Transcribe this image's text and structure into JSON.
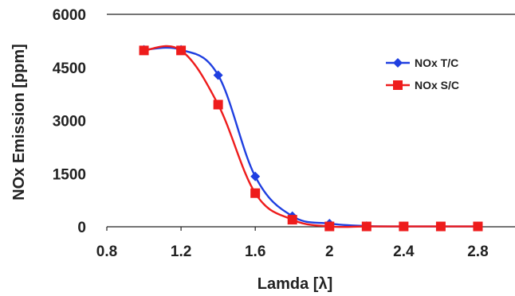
{
  "chart_data": {
    "type": "line",
    "xlabel": "Lamda [λ]",
    "ylabel": "NOx Emission [ppm]",
    "xlim": [
      0.8,
      3.0
    ],
    "ylim": [
      0,
      6000
    ],
    "x_ticks": [
      "0.8",
      "1.2",
      "1.6",
      "2",
      "2.4",
      "2.8"
    ],
    "y_ticks": [
      "0",
      "1500",
      "3000",
      "4500",
      "6000"
    ],
    "grid": "top border line only",
    "legend_position": "right",
    "series": [
      {
        "name": "NOx T/C",
        "color": "#1f3fe0",
        "marker": "diamond",
        "x": [
          1.0,
          1.2,
          1.4,
          1.6,
          1.8,
          2.0,
          2.2,
          2.4,
          2.6,
          2.8
        ],
        "y": [
          5000,
          5000,
          4280,
          1420,
          300,
          90,
          20,
          10,
          10,
          10
        ]
      },
      {
        "name": "NOx S/C",
        "color": "#ee1c1c",
        "marker": "square",
        "x": [
          1.0,
          1.2,
          1.4,
          1.6,
          1.8,
          2.0,
          2.2,
          2.4,
          2.6,
          2.8
        ],
        "y": [
          4980,
          4980,
          3450,
          950,
          200,
          10,
          10,
          10,
          10,
          10
        ]
      }
    ]
  }
}
